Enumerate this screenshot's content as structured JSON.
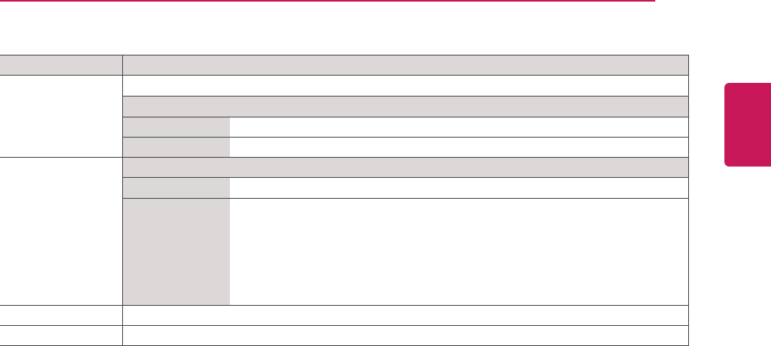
{
  "colors": {
    "accent": "#c8185a",
    "cell_shade": "#dcd8d8",
    "rule": "#4a4a4a"
  },
  "table": {
    "header": [
      "",
      ""
    ],
    "rows": []
  }
}
